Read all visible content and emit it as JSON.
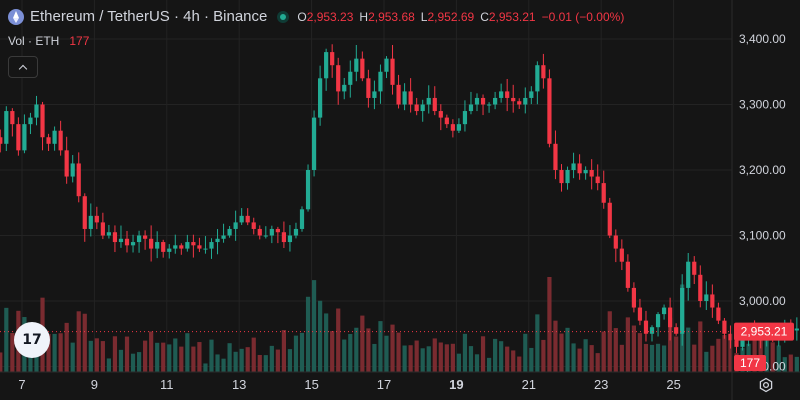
{
  "legend": {
    "title": "Ethereum / TetherUS · 4h · Binance",
    "o_label": "O",
    "o_value": "2,953.23",
    "h_label": "H",
    "h_value": "2,953.68",
    "l_label": "L",
    "l_value": "2,952.69",
    "c_label": "C",
    "c_value": "2,953.21",
    "change": "−0.01 (−0.00%)",
    "icon": "ethereum-icon"
  },
  "volume_legend": {
    "label": "Vol · ETH",
    "value": "177"
  },
  "logo_text": "17",
  "colors": {
    "up": "#22ab94",
    "down": "#f23645",
    "bg": "#151515",
    "grid": "#232323",
    "text": "#d1d4dc"
  },
  "chart_data": {
    "type": "candlestick",
    "price_axis": {
      "ticks": [
        "3,400.00",
        "3,300.00",
        "3,200.00",
        "3,100.00",
        "3,000.00",
        "2,900.00"
      ],
      "tick_values": [
        3400,
        3300,
        3200,
        3100,
        3000,
        2900
      ],
      "range": [
        2850,
        3435
      ]
    },
    "time_axis": {
      "ticks": [
        "7",
        "9",
        "11",
        "13",
        "15",
        "17",
        "19",
        "21",
        "23",
        "25"
      ],
      "bold": "19",
      "day_range": [
        6.33,
        25.15
      ]
    },
    "last_price": "2,953.21",
    "last_price_value": 2953.21,
    "last_volume": "177",
    "start_day": 6.4,
    "bar_days": 0.1667,
    "close_path": [
      3240,
      3290,
      3270,
      3230,
      3270,
      3280,
      3300,
      3250,
      3240,
      3260,
      3230,
      3190,
      3210,
      3160,
      3110,
      3130,
      3120,
      3100,
      3105,
      3090,
      3095,
      3085,
      3090,
      3100,
      3095,
      3080,
      3090,
      3075,
      3080,
      3085,
      3080,
      3090,
      3085,
      3080,
      3080,
      3090,
      3095,
      3100,
      3110,
      3120,
      3130,
      3120,
      3110,
      3100,
      3100,
      3110,
      3105,
      3090,
      3100,
      3110,
      3140,
      3200,
      3280,
      3340,
      3380,
      3360,
      3320,
      3330,
      3350,
      3370,
      3340,
      3310,
      3320,
      3350,
      3370,
      3330,
      3300,
      3320,
      3300,
      3290,
      3300,
      3310,
      3290,
      3280,
      3270,
      3260,
      3270,
      3290,
      3300,
      3310,
      3300,
      3300,
      3310,
      3320,
      3310,
      3305,
      3300,
      3310,
      3320,
      3360,
      3340,
      3240,
      3200,
      3180,
      3200,
      3210,
      3195,
      3200,
      3190,
      3180,
      3150,
      3100,
      3080,
      3060,
      3020,
      2990,
      2970,
      2950,
      2960,
      2980,
      2990,
      2960,
      2950,
      3020,
      3060,
      3040,
      3000,
      3010,
      2990,
      2970,
      2950,
      2940,
      2930,
      2940,
      2960,
      2950,
      2940,
      2950,
      2945,
      2955,
      2960,
      2955,
      2958,
      2956,
      2955,
      2954,
      2953.21
    ]
  }
}
